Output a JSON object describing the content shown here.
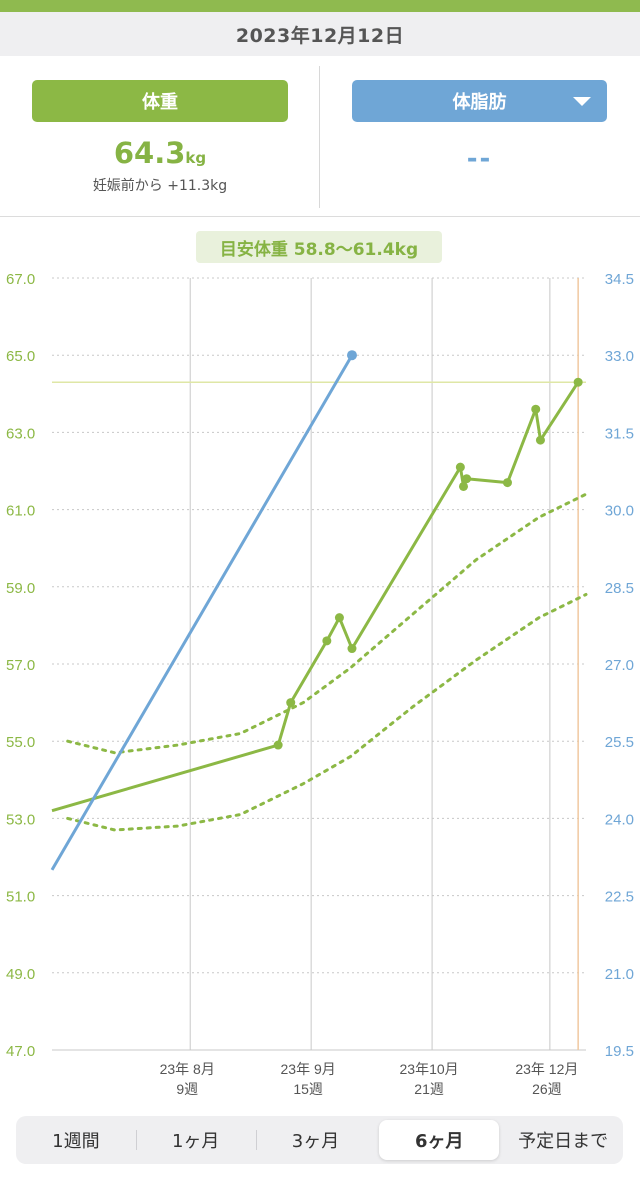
{
  "header": {
    "date": "2023年12月12日"
  },
  "summary": {
    "weight_tab": "体重",
    "fat_tab": "体脂肪",
    "weight_value": "64.3",
    "weight_unit": "kg",
    "weight_diff": "妊娠前から +11.3kg",
    "fat_value": "--"
  },
  "guide": {
    "label": "目安体重 58.8～61.4kg"
  },
  "colors": {
    "weight": "#8cb845",
    "fat": "#6fa6d6",
    "grid": "#c8c8c8",
    "today_line": "#f0c9a0",
    "current_line": "#dfe7a6"
  },
  "chart_data": {
    "type": "line",
    "x_range": [
      -2,
      32
    ],
    "y_left_range": [
      47.0,
      67.0
    ],
    "y_right_range": [
      19.5,
      34.5
    ],
    "y_left_ticks": [
      "67.0",
      "65.0",
      "63.0",
      "61.0",
      "59.0",
      "57.0",
      "55.0",
      "53.0",
      "51.0",
      "49.0",
      "47.0"
    ],
    "y_right_ticks": [
      "34.5",
      "33.0",
      "31.5",
      "30.0",
      "28.5",
      "27.0",
      "25.5",
      "24.0",
      "22.5",
      "21.0",
      "19.5"
    ],
    "x_ticks": [
      {
        "x": 6.8,
        "month": "23年 8月",
        "week": "9週"
      },
      {
        "x": 14.5,
        "month": "23年 9月",
        "week": "15週"
      },
      {
        "x": 22.2,
        "month": "23年10月",
        "week": "21週"
      },
      {
        "x": 29.7,
        "month": "23年 12月",
        "week": "26週"
      }
    ],
    "current_weight": 64.3,
    "today_x": 31.5,
    "series": [
      {
        "axis": "left",
        "kind": "weight",
        "points": [
          [
            -2,
            53.2
          ],
          [
            12.4,
            54.9
          ],
          [
            13.2,
            56.0
          ],
          [
            15.5,
            57.6
          ],
          [
            16.3,
            58.2
          ],
          [
            17.1,
            57.4
          ],
          [
            24.0,
            62.1
          ],
          [
            24.2,
            61.6
          ],
          [
            24.4,
            61.8
          ],
          [
            27.0,
            61.7
          ],
          [
            28.8,
            63.6
          ],
          [
            29.1,
            62.8
          ],
          [
            31.5,
            64.3
          ]
        ]
      },
      {
        "axis": "left",
        "kind": "upper-guide",
        "points": [
          [
            -1,
            55.0
          ],
          [
            2,
            54.7
          ],
          [
            6,
            54.9
          ],
          [
            10,
            55.2
          ],
          [
            14,
            56.0
          ],
          [
            17,
            56.9
          ],
          [
            21,
            58.3
          ],
          [
            25,
            59.7
          ],
          [
            29,
            60.8
          ],
          [
            32,
            61.4
          ]
        ]
      },
      {
        "axis": "left",
        "kind": "lower-guide",
        "points": [
          [
            -1,
            53.0
          ],
          [
            2,
            52.7
          ],
          [
            6,
            52.8
          ],
          [
            10,
            53.1
          ],
          [
            14,
            53.9
          ],
          [
            17,
            54.6
          ],
          [
            21,
            55.9
          ],
          [
            25,
            57.1
          ],
          [
            29,
            58.2
          ],
          [
            32,
            58.8
          ]
        ]
      },
      {
        "axis": "right",
        "kind": "fat",
        "points": [
          [
            -2,
            23.0
          ],
          [
            17.1,
            33.0
          ]
        ]
      }
    ]
  },
  "range_tabs": [
    "1週間",
    "1ヶ月",
    "3ヶ月",
    "6ヶ月",
    "予定日まで"
  ],
  "active_range": "6ヶ月"
}
